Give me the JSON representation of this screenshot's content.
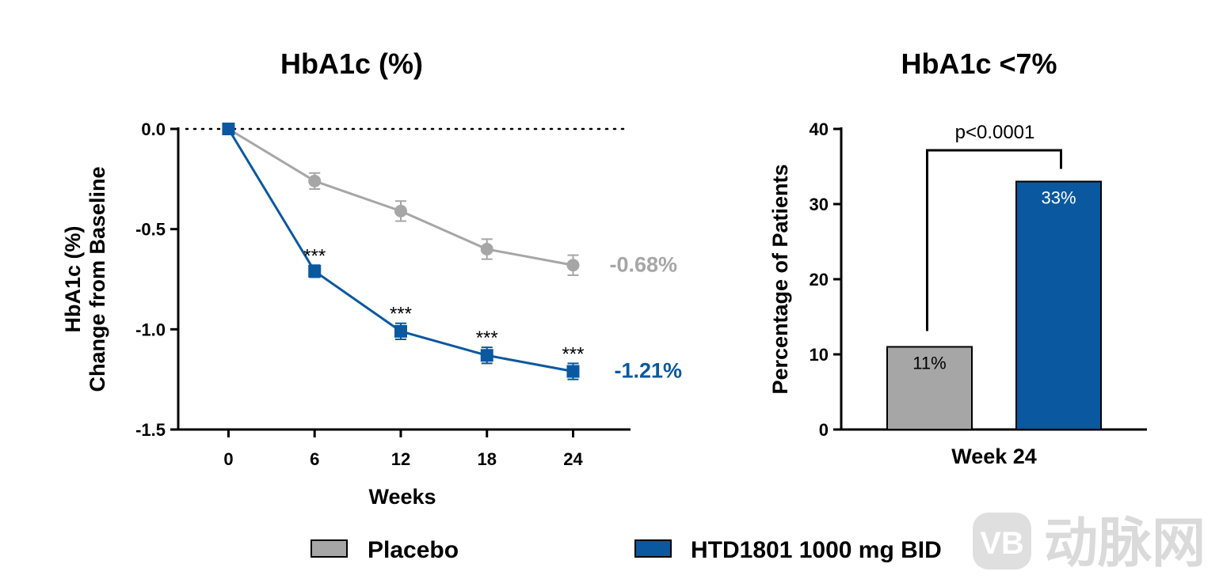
{
  "colors": {
    "placebo": "#a6a6a6",
    "htd": "#0a58a0",
    "axis": "#000000"
  },
  "legend": {
    "items": [
      {
        "label": "Placebo",
        "color": "#a6a6a6"
      },
      {
        "label": "HTD1801 1000 mg BID",
        "color": "#0a58a0"
      }
    ]
  },
  "watermark": {
    "text": "动脉网",
    "logo_letters": "VB"
  },
  "chart_data": [
    {
      "type": "line",
      "title": "HbA1c (%)",
      "xlabel": "Weeks",
      "ylabel_line1": "HbA1c (%)",
      "ylabel_line2": "Change from Baseline",
      "x": [
        0,
        6,
        12,
        18,
        24
      ],
      "xlim": [
        -3.5,
        28
      ],
      "ylim": [
        -1.5,
        0.0
      ],
      "y_ticks": [
        0.0,
        -0.5,
        -1.0,
        -1.5
      ],
      "y_tick_labels": [
        "0.0",
        "-0.5",
        "-1.0",
        "-1.5"
      ],
      "x_tick_labels": [
        "0",
        "6",
        "12",
        "18",
        "24"
      ],
      "reference_line": 0.0,
      "series": [
        {
          "name": "Placebo",
          "values": [
            0.0,
            -0.26,
            -0.41,
            -0.6,
            -0.68
          ],
          "errors": [
            0.0,
            0.04,
            0.05,
            0.05,
            0.05
          ],
          "marker": "circle",
          "end_label": "-0.68%"
        },
        {
          "name": "HTD1801 1000 mg BID",
          "values": [
            0.0,
            -0.71,
            -1.01,
            -1.13,
            -1.21
          ],
          "errors": [
            0.0,
            0.03,
            0.04,
            0.04,
            0.04
          ],
          "marker": "square",
          "end_label": "-1.21%",
          "annotations": [
            "",
            "***",
            "***",
            "***",
            "***"
          ]
        }
      ]
    },
    {
      "type": "bar",
      "title": "HbA1c <7%",
      "ylabel": "Percentage of Patients",
      "categories": [
        "Week 24"
      ],
      "ylim": [
        0,
        40
      ],
      "y_ticks": [
        0,
        10,
        20,
        30,
        40
      ],
      "y_tick_labels": [
        "0",
        "10",
        "20",
        "30",
        "40"
      ],
      "series": [
        {
          "name": "Placebo",
          "values": [
            11
          ],
          "label": "11%"
        },
        {
          "name": "HTD1801 1000 mg BID",
          "values": [
            33
          ],
          "label": "33%"
        }
      ],
      "significance": "p<0.0001"
    }
  ]
}
